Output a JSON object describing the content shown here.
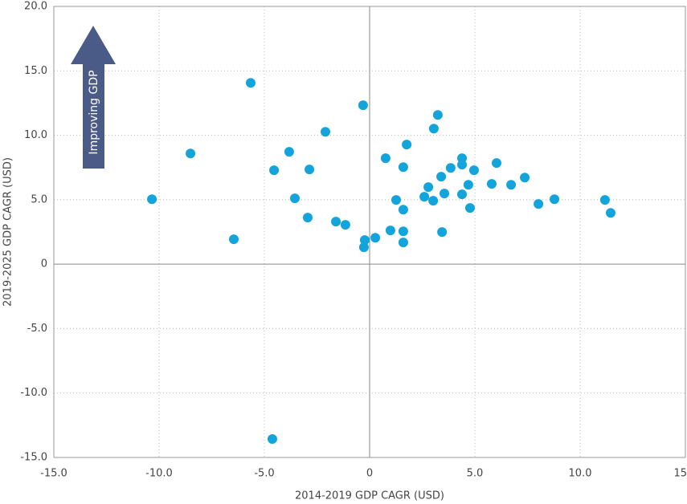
{
  "chart_data": {
    "type": "scatter",
    "x_label": "2014-2019 GDP CAGR (USD)",
    "y_label": "2019-2025 GDP CAGR (USD)",
    "annotation": "Improving GDP",
    "color": "#12a4db",
    "x": [
      -10.34,
      -8.51,
      -6.45,
      -5.65,
      -4.62,
      -4.54,
      -3.82,
      -3.55,
      -2.94,
      -2.86,
      -2.1,
      -1.6,
      -1.15,
      -0.31,
      -0.23,
      -0.27,
      0.27,
      0.76,
      0.99,
      1.26,
      1.6,
      1.6,
      1.6,
      1.6,
      1.76,
      2.6,
      2.79,
      3.02,
      3.05,
      3.24,
      3.4,
      3.44,
      3.55,
      3.85,
      4.39,
      4.39,
      4.39,
      4.69,
      4.77,
      4.96,
      5.8,
      6.03,
      6.72,
      7.37,
      8.02,
      8.78,
      11.18,
      11.45
    ],
    "values": [
      5.04,
      8.59,
      1.93,
      14.07,
      -13.57,
      7.29,
      8.72,
      5.11,
      3.61,
      7.35,
      10.27,
      3.3,
      3.05,
      12.33,
      1.87,
      1.31,
      2.05,
      8.22,
      2.62,
      4.98,
      7.53,
      4.23,
      2.55,
      1.68,
      9.28,
      5.23,
      5.98,
      4.92,
      10.52,
      11.58,
      6.79,
      2.49,
      5.48,
      7.47,
      8.22,
      7.72,
      5.42,
      6.16,
      4.36,
      7.29,
      6.23,
      7.85,
      6.16,
      6.72,
      4.67,
      5.04,
      4.98,
      3.98
    ],
    "xlim": [
      -15,
      15
    ],
    "ylim": [
      -15,
      20
    ],
    "xticks": [
      {
        "value": -15,
        "label": "-15.0"
      },
      {
        "value": -10,
        "label": "-10.0"
      },
      {
        "value": -5,
        "label": "-5.0"
      },
      0,
      {
        "value": 5,
        "label": "5.0"
      },
      {
        "value": 10,
        "label": "10.0"
      },
      {
        "value": 15,
        "label": "15.0"
      }
    ],
    "yticks": [
      {
        "value": -15,
        "label": "-15.0"
      },
      {
        "value": -10,
        "label": "-10.0"
      },
      {
        "value": -5,
        "label": "-5.0"
      },
      0,
      {
        "value": 5,
        "label": "5.0"
      },
      {
        "value": 10,
        "label": "10.0"
      },
      {
        "value": 15,
        "label": "15.0"
      },
      {
        "value": 20,
        "label": "20.0"
      }
    ],
    "grid": true
  }
}
